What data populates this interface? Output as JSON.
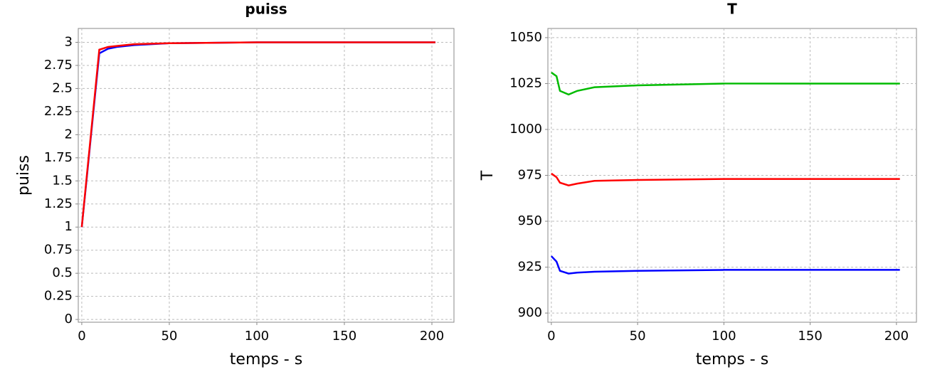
{
  "chart_data": [
    {
      "type": "line",
      "title": "puiss",
      "x_label": "temps - s",
      "y_label": "puiss",
      "x": [
        0,
        3,
        5,
        10,
        15,
        20,
        30,
        50,
        100,
        150,
        202
      ],
      "series": [
        {
          "color": "#0000ff",
          "values": [
            1,
            1.56,
            1.94,
            2.88,
            2.93,
            2.95,
            2.97,
            2.99,
            3.0,
            3.0,
            3.0
          ]
        },
        {
          "color": "#ff0000",
          "values": [
            1,
            1.58,
            1.96,
            2.92,
            2.95,
            2.96,
            2.98,
            2.99,
            3.0,
            3.0,
            3.0
          ]
        }
      ],
      "xlim": [
        -2,
        212.6
      ],
      "xticks": [
        0,
        50,
        100,
        150,
        200
      ],
      "ylim": [
        -0.03,
        3.15
      ],
      "yticks": [
        0,
        0.25,
        0.5,
        0.75,
        1,
        1.25,
        1.5,
        1.75,
        2,
        2.25,
        2.5,
        2.75,
        3
      ],
      "grid": true
    },
    {
      "type": "line",
      "title": "T",
      "x_label": "temps - s",
      "y_label": "T",
      "x": [
        0,
        3,
        5,
        10,
        15,
        25,
        50,
        100,
        150,
        202
      ],
      "series": [
        {
          "color": "#00bb00",
          "values": [
            1031,
            1029,
            1021,
            1019,
            1021,
            1023,
            1024,
            1025,
            1025,
            1025
          ]
        },
        {
          "color": "#ff0000",
          "values": [
            976,
            974,
            971,
            969.5,
            970.5,
            972,
            972.5,
            973,
            973,
            973
          ]
        },
        {
          "color": "#0000ff",
          "values": [
            931,
            928,
            923,
            921.5,
            922,
            922.5,
            923,
            923.5,
            923.5,
            923.5
          ]
        }
      ],
      "xlim": [
        -2,
        211.6
      ],
      "xticks": [
        0,
        50,
        100,
        150,
        200
      ],
      "ylim": [
        895,
        1055
      ],
      "yticks": [
        900,
        925,
        950,
        975,
        1000,
        1025,
        1050
      ],
      "grid": true
    }
  ]
}
